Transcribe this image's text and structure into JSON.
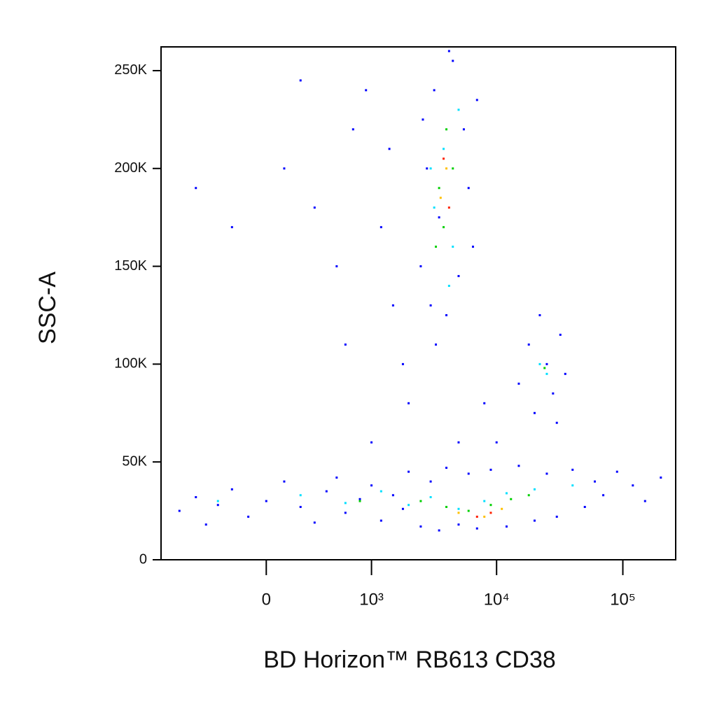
{
  "chart_data": {
    "type": "scatter",
    "xlabel": "BD Horizon™ RB613 CD38",
    "ylabel": "SSC-A",
    "xscale": "biexponential",
    "xlim": [
      -1000,
      262144
    ],
    "ylim": [
      0,
      262144
    ],
    "xticks": [
      0,
      {
        "value": 1000,
        "label": "10³"
      },
      {
        "value": 10000,
        "label": "10⁴"
      },
      {
        "value": 100000,
        "label": "10⁵"
      }
    ],
    "yticks": [
      0,
      {
        "value": 50000,
        "label": "50K"
      },
      {
        "value": 100000,
        "label": "100K"
      },
      {
        "value": 150000,
        "label": "150K"
      },
      {
        "value": 200000,
        "label": "200K"
      },
      {
        "value": 250000,
        "label": "250K"
      }
    ],
    "series": [
      {
        "color": "#0000ff",
        "x": [
          -700,
          -500,
          -400,
          -300,
          -200,
          -100,
          0,
          100,
          200,
          300,
          400,
          500,
          600,
          800,
          1000,
          1200,
          1500,
          1800,
          2000,
          2500,
          3000,
          3500,
          4000,
          5000,
          6000,
          7000,
          9000,
          12000,
          15000,
          20000,
          25000,
          30000,
          40000,
          50000,
          60000,
          70000,
          90000,
          120000,
          150000,
          200000,
          2500,
          2800,
          3000,
          3200,
          3500,
          4000,
          4500,
          5000,
          5500,
          6000,
          6500,
          7000,
          3300,
          2600,
          4200,
          15000,
          18000,
          20000,
          22000,
          25000,
          28000,
          32000,
          35000,
          30000,
          100,
          300,
          500,
          700,
          900,
          1200,
          1500,
          1800,
          200,
          -200,
          -500,
          2000,
          1000,
          5000,
          8000,
          10000,
          600,
          1400
        ],
        "values": [
          25000,
          32000,
          18000,
          28000,
          36000,
          22000,
          30000,
          40000,
          27000,
          19000,
          35000,
          42000,
          24000,
          31000,
          38000,
          20000,
          33000,
          26000,
          45000,
          17000,
          40000,
          15000,
          47000,
          18000,
          44000,
          16000,
          46000,
          17000,
          48000,
          20000,
          44000,
          22000,
          46000,
          27000,
          40000,
          33000,
          45000,
          38000,
          30000,
          42000,
          150000,
          200000,
          130000,
          240000,
          175000,
          125000,
          255000,
          145000,
          220000,
          190000,
          160000,
          235000,
          110000,
          225000,
          260000,
          90000,
          110000,
          75000,
          125000,
          100000,
          85000,
          115000,
          95000,
          70000,
          200000,
          180000,
          150000,
          220000,
          240000,
          170000,
          130000,
          100000,
          245000,
          170000,
          190000,
          80000,
          60000,
          60000,
          80000,
          60000,
          110000,
          210000
        ]
      },
      {
        "color": "#00e0ff",
        "x": [
          -300,
          200,
          600,
          1200,
          2000,
          3000,
          5000,
          8000,
          12000,
          20000,
          40000,
          3200,
          3800,
          4500,
          5000,
          3000,
          4200,
          22000,
          25000
        ],
        "values": [
          30000,
          33000,
          29000,
          35000,
          28000,
          32000,
          26000,
          30000,
          34000,
          36000,
          38000,
          180000,
          210000,
          160000,
          230000,
          200000,
          140000,
          100000,
          95000
        ]
      },
      {
        "color": "#00d000",
        "x": [
          2500,
          4000,
          6000,
          9000,
          13000,
          18000,
          800,
          3500,
          4000,
          3800,
          4500,
          3300,
          24000
        ],
        "values": [
          30000,
          27000,
          25000,
          28000,
          31000,
          33000,
          30000,
          190000,
          220000,
          170000,
          200000,
          160000,
          98000
        ]
      },
      {
        "color": "#ffc000",
        "x": [
          5000,
          8000,
          11000,
          4000,
          3600
        ],
        "values": [
          24000,
          22000,
          26000,
          200000,
          185000
        ]
      },
      {
        "color": "#ff2000",
        "x": [
          7000,
          9000,
          3800,
          4200
        ],
        "values": [
          22000,
          24000,
          205000,
          180000
        ]
      }
    ]
  }
}
